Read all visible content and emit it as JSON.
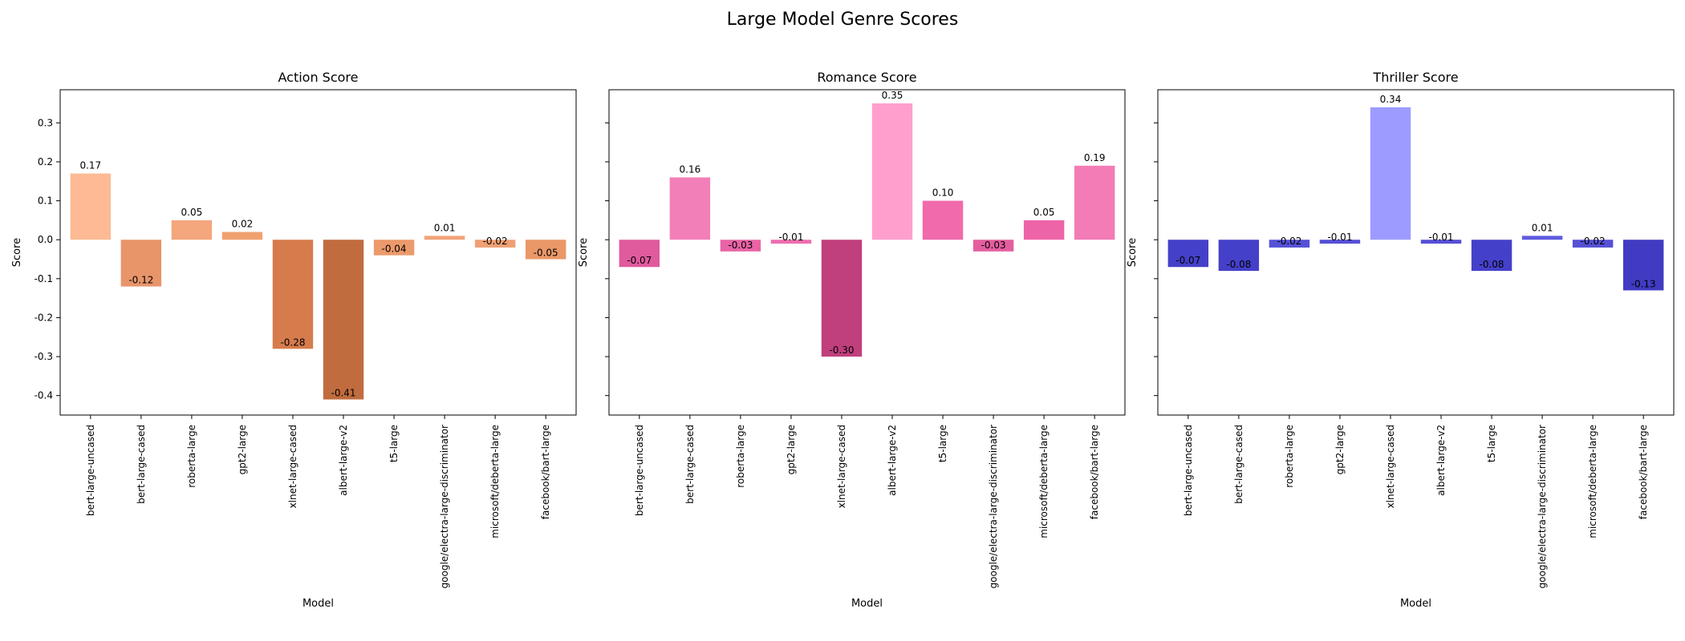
{
  "figure": {
    "title": "Large Model Genre Scores"
  },
  "chart_data": [
    {
      "type": "bar",
      "title": "Action Score",
      "xlabel": "Model",
      "ylabel": "Score",
      "ylim": [
        -0.45,
        0.385
      ],
      "yticks": [
        "0.3",
        "0.2",
        "0.1",
        "0.0",
        "-0.1",
        "-0.2",
        "-0.3",
        "-0.4"
      ],
      "ytick_values": [
        0.3,
        0.2,
        0.1,
        0.0,
        -0.1,
        -0.2,
        -0.3,
        -0.4
      ],
      "show_yticklabels": true,
      "grid": false,
      "categories": [
        "bert-large-uncased",
        "bert-large-cased",
        "roberta-large",
        "gpt2-large",
        "xlnet-large-cased",
        "albert-large-v2",
        "t5-large",
        "google/electra-large-discriminator",
        "microsoft/deberta-large",
        "facebook/bart-large"
      ],
      "values": [
        0.17,
        -0.12,
        0.05,
        0.02,
        -0.28,
        -0.41,
        -0.04,
        0.01,
        -0.02,
        -0.05
      ],
      "value_labels": [
        "0.17",
        "-0.12",
        "0.05",
        "0.02",
        "-0.28",
        "-0.41",
        "-0.04",
        "0.01",
        "-0.02",
        "-0.05"
      ],
      "colors": [
        "#FDBA94",
        "#E8956A",
        "#F4A67C",
        "#F1A070",
        "#D67B4C",
        "#C16C3E",
        "#EC9A6C",
        "#F2A378",
        "#EFA074",
        "#EA9868"
      ]
    },
    {
      "type": "bar",
      "title": "Romance Score",
      "xlabel": "Model",
      "ylabel": "Score",
      "ylim": [
        -0.45,
        0.385
      ],
      "yticks": [
        "0.3",
        "0.2",
        "0.1",
        "0.0",
        "-0.1",
        "-0.2",
        "-0.3",
        "-0.4"
      ],
      "ytick_values": [
        0.3,
        0.2,
        0.1,
        0.0,
        -0.1,
        -0.2,
        -0.3,
        -0.4
      ],
      "show_yticklabels": false,
      "grid": false,
      "categories": [
        "bert-large-uncased",
        "bert-large-cased",
        "roberta-large",
        "gpt2-large",
        "xlnet-large-cased",
        "albert-large-v2",
        "t5-large",
        "google/electra-large-discriminator",
        "microsoft/deberta-large",
        "facebook/bart-large"
      ],
      "values": [
        -0.07,
        0.16,
        -0.03,
        -0.01,
        -0.3,
        0.35,
        0.1,
        -0.03,
        0.05,
        0.19
      ],
      "value_labels": [
        "-0.07",
        "0.16",
        "-0.03",
        "-0.01",
        "-0.30",
        "0.35",
        "0.10",
        "-0.03",
        "0.05",
        "0.19"
      ],
      "colors": [
        "#E05A9E",
        "#F37FB8",
        "#E963A6",
        "#EE6EAF",
        "#C03F7D",
        "#FF9FCD",
        "#F06AAC",
        "#E45E9F",
        "#EE64A8",
        "#F37CB6"
      ]
    },
    {
      "type": "bar",
      "title": "Thriller Score",
      "xlabel": "Model",
      "ylabel": "Score",
      "ylim": [
        -0.45,
        0.385
      ],
      "yticks": [
        "0.3",
        "0.2",
        "0.1",
        "0.0",
        "-0.1",
        "-0.2",
        "-0.3",
        "-0.4"
      ],
      "ytick_values": [
        0.3,
        0.2,
        0.1,
        0.0,
        -0.1,
        -0.2,
        -0.3,
        -0.4
      ],
      "show_yticklabels": false,
      "grid": false,
      "categories": [
        "bert-large-uncased",
        "bert-large-cased",
        "roberta-large",
        "gpt2-large",
        "xlnet-large-cased",
        "albert-large-v2",
        "t5-large",
        "google/electra-large-discriminator",
        "microsoft/deberta-large",
        "facebook/bart-large"
      ],
      "values": [
        -0.07,
        -0.08,
        -0.02,
        -0.01,
        0.34,
        -0.01,
        -0.08,
        0.01,
        -0.02,
        -0.13
      ],
      "value_labels": [
        "-0.07",
        "-0.08",
        "-0.02",
        "-0.01",
        "0.34",
        "-0.01",
        "-0.08",
        "0.01",
        "-0.02",
        "-0.13"
      ],
      "colors": [
        "#4540C9",
        "#4540C9",
        "#5550D6",
        "#5550D6",
        "#9D9BFF",
        "#5550D6",
        "#4540C9",
        "#5F5BE0",
        "#5550D6",
        "#403BC2"
      ]
    }
  ]
}
